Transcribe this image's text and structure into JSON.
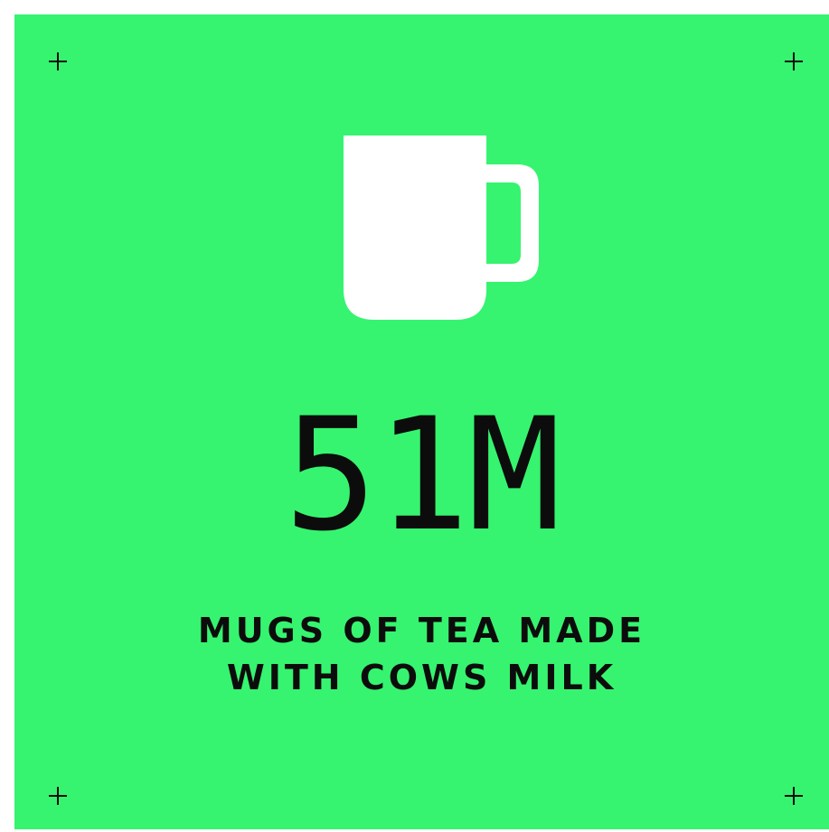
{
  "stat": {
    "value": "51M",
    "caption_line1": "MUGS OF TEA MADE",
    "caption_line2": "WITH COWS MILK"
  },
  "icons": {
    "main": "mug-icon",
    "corners": "plus-icon"
  },
  "colors": {
    "background": "#36f46f",
    "text": "#0c0c0c",
    "icon": "#ffffff"
  }
}
